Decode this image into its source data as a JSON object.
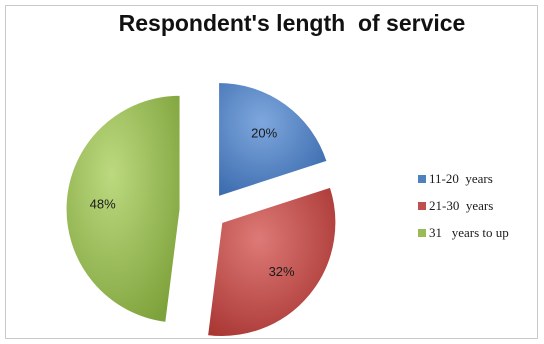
{
  "chart_data": {
    "type": "pie",
    "title": "Respondent's length  of service",
    "categories": [
      "11-20  years",
      "21-30  years",
      "31   years to up"
    ],
    "values": [
      20,
      32,
      48
    ],
    "data_labels": [
      "20%",
      "32%",
      "48%"
    ],
    "exploded": true,
    "legend_position": "right",
    "colors": [
      "#4f81bd",
      "#c0504d",
      "#9bbb59"
    ]
  }
}
